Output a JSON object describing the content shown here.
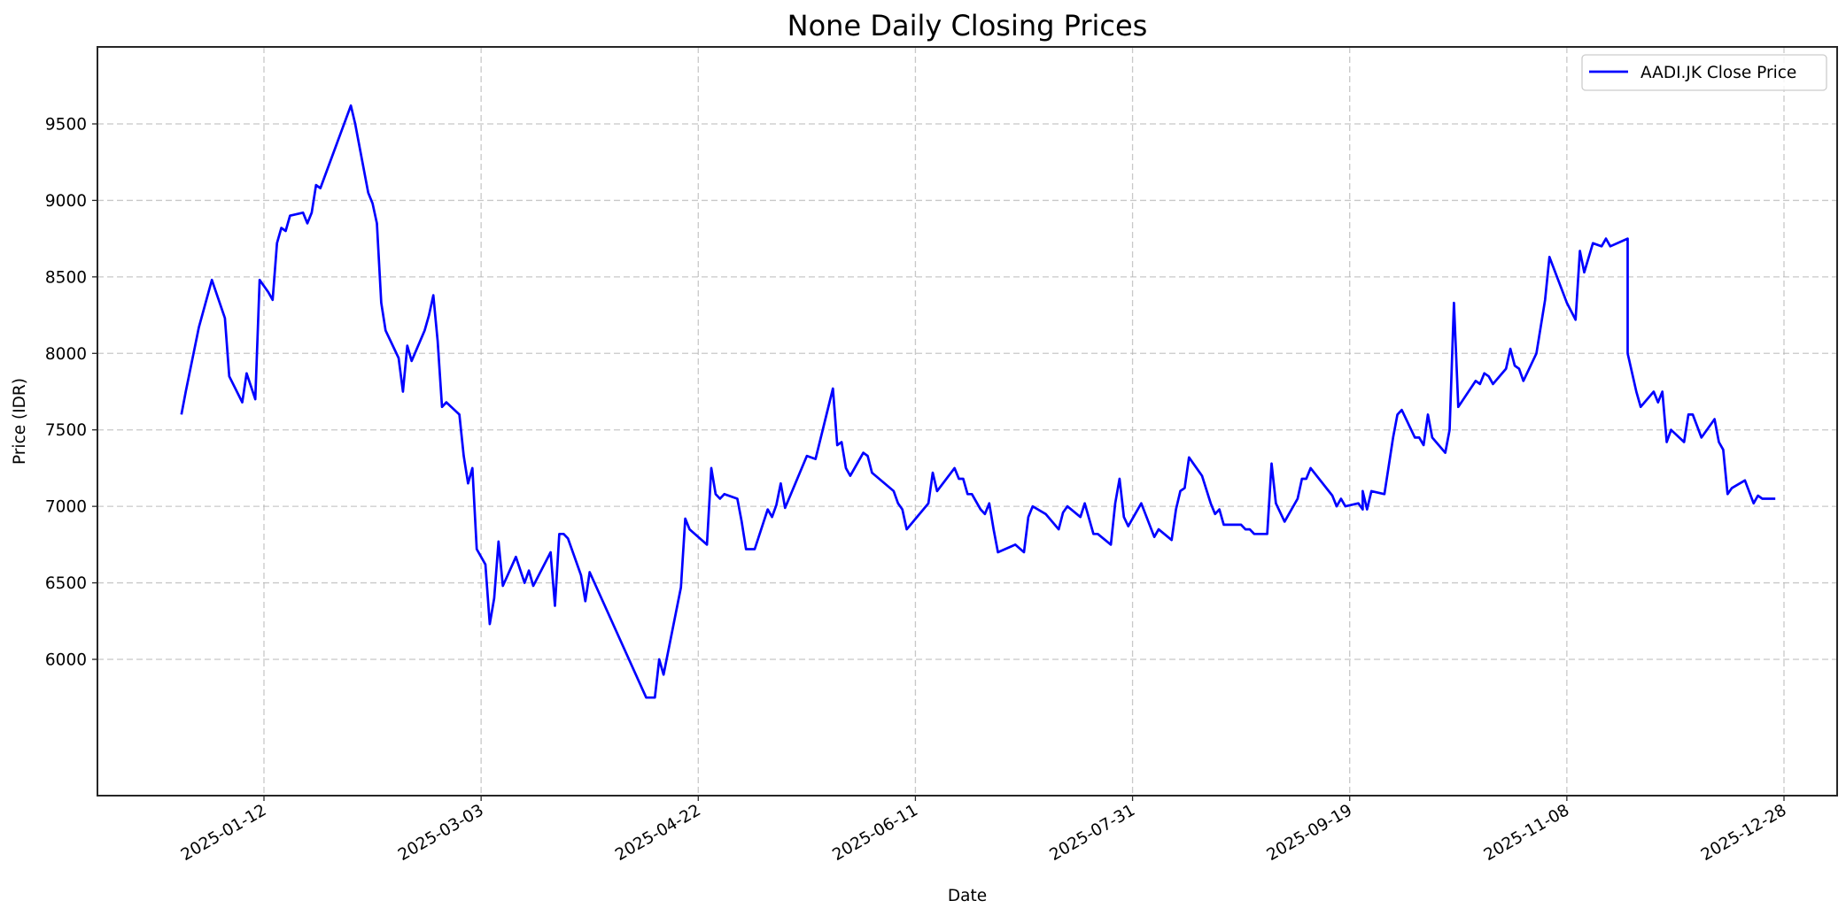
{
  "chart_data": {
    "type": "line",
    "title": "None Daily Closing Prices",
    "xlabel": "Date",
    "ylabel": "Price (IDR)",
    "ylim": [
      5620,
      9810
    ],
    "xlim": [
      "2024-12-15",
      "2026-01-05"
    ],
    "grid": true,
    "legend_position": "upper right",
    "x_ticks": [
      "2025-01-12",
      "2025-03-03",
      "2025-04-22",
      "2025-06-11",
      "2025-07-31",
      "2025-09-19",
      "2025-11-08",
      "2025-12-28"
    ],
    "y_ticks": [
      6000,
      6500,
      7000,
      7500,
      8000,
      8500,
      9000,
      9500
    ],
    "series": [
      {
        "name": "AADI.JK Close Price",
        "color": "#0000ff",
        "points": [
          [
            "2024-12-24",
            7600
          ],
          [
            "2024-12-25",
            7750
          ],
          [
            "2024-12-28",
            8170
          ],
          [
            "2024-12-31",
            8480
          ],
          [
            "2025-01-03",
            8230
          ],
          [
            "2025-01-04",
            7850
          ],
          [
            "2025-01-07",
            7680
          ],
          [
            "2025-01-08",
            7870
          ],
          [
            "2025-01-10",
            7700
          ],
          [
            "2025-01-11",
            8480
          ],
          [
            "2025-01-13",
            8400
          ],
          [
            "2025-01-14",
            8350
          ],
          [
            "2025-01-15",
            8720
          ],
          [
            "2025-01-16",
            8820
          ],
          [
            "2025-01-17",
            8800
          ],
          [
            "2025-01-18",
            8900
          ],
          [
            "2025-01-21",
            8920
          ],
          [
            "2025-01-22",
            8850
          ],
          [
            "2025-01-23",
            8920
          ],
          [
            "2025-01-24",
            9100
          ],
          [
            "2025-01-25",
            9080
          ],
          [
            "2025-02-01",
            9620
          ],
          [
            "2025-02-02",
            9500
          ],
          [
            "2025-02-05",
            9050
          ],
          [
            "2025-02-06",
            8980
          ],
          [
            "2025-02-07",
            8850
          ],
          [
            "2025-02-08",
            8330
          ],
          [
            "2025-02-09",
            8150
          ],
          [
            "2025-02-12",
            7970
          ],
          [
            "2025-02-13",
            7750
          ],
          [
            "2025-02-14",
            8050
          ],
          [
            "2025-02-15",
            7950
          ],
          [
            "2025-02-18",
            8150
          ],
          [
            "2025-02-19",
            8250
          ],
          [
            "2025-02-20",
            8380
          ],
          [
            "2025-02-21",
            8080
          ],
          [
            "2025-02-22",
            7650
          ],
          [
            "2025-02-23",
            7680
          ],
          [
            "2025-02-26",
            7600
          ],
          [
            "2025-02-27",
            7330
          ],
          [
            "2025-02-28",
            7150
          ],
          [
            "2025-03-01",
            7250
          ],
          [
            "2025-03-02",
            6720
          ],
          [
            "2025-03-04",
            6620
          ],
          [
            "2025-03-05",
            6230
          ],
          [
            "2025-03-06",
            6400
          ],
          [
            "2025-03-07",
            6770
          ],
          [
            "2025-03-08",
            6480
          ],
          [
            "2025-03-11",
            6670
          ],
          [
            "2025-03-13",
            6500
          ],
          [
            "2025-03-14",
            6580
          ],
          [
            "2025-03-15",
            6480
          ],
          [
            "2025-03-19",
            6700
          ],
          [
            "2025-03-20",
            6350
          ],
          [
            "2025-03-21",
            6820
          ],
          [
            "2025-03-22",
            6820
          ],
          [
            "2025-03-23",
            6790
          ],
          [
            "2025-03-26",
            6550
          ],
          [
            "2025-03-27",
            6380
          ],
          [
            "2025-03-28",
            6570
          ],
          [
            "2025-04-10",
            5750
          ],
          [
            "2025-04-12",
            5750
          ],
          [
            "2025-04-13",
            6000
          ],
          [
            "2025-04-14",
            5900
          ],
          [
            "2025-04-18",
            6470
          ],
          [
            "2025-04-19",
            6920
          ],
          [
            "2025-04-20",
            6850
          ],
          [
            "2025-04-24",
            6750
          ],
          [
            "2025-04-25",
            7250
          ],
          [
            "2025-04-26",
            7080
          ],
          [
            "2025-04-27",
            7050
          ],
          [
            "2025-04-28",
            7080
          ],
          [
            "2025-05-01",
            7050
          ],
          [
            "2025-05-02",
            6900
          ],
          [
            "2025-05-03",
            6720
          ],
          [
            "2025-05-05",
            6720
          ],
          [
            "2025-05-08",
            6980
          ],
          [
            "2025-05-09",
            6930
          ],
          [
            "2025-05-10",
            7010
          ],
          [
            "2025-05-11",
            7150
          ],
          [
            "2025-05-12",
            6990
          ],
          [
            "2025-05-17",
            7330
          ],
          [
            "2025-05-19",
            7310
          ],
          [
            "2025-05-23",
            7770
          ],
          [
            "2025-05-24",
            7400
          ],
          [
            "2025-05-25",
            7420
          ],
          [
            "2025-05-26",
            7250
          ],
          [
            "2025-05-27",
            7200
          ],
          [
            "2025-05-30",
            7350
          ],
          [
            "2025-05-31",
            7330
          ],
          [
            "2025-06-01",
            7220
          ],
          [
            "2025-06-06",
            7100
          ],
          [
            "2025-06-07",
            7020
          ],
          [
            "2025-06-08",
            6980
          ],
          [
            "2025-06-09",
            6850
          ],
          [
            "2025-06-14",
            7020
          ],
          [
            "2025-06-15",
            7220
          ],
          [
            "2025-06-16",
            7100
          ],
          [
            "2025-06-20",
            7250
          ],
          [
            "2025-06-21",
            7180
          ],
          [
            "2025-06-22",
            7180
          ],
          [
            "2025-06-23",
            7080
          ],
          [
            "2025-06-24",
            7080
          ],
          [
            "2025-06-26",
            6980
          ],
          [
            "2025-06-27",
            6950
          ],
          [
            "2025-06-28",
            7020
          ],
          [
            "2025-06-29",
            6850
          ],
          [
            "2025-06-30",
            6700
          ],
          [
            "2025-07-04",
            6750
          ],
          [
            "2025-07-06",
            6700
          ],
          [
            "2025-07-07",
            6930
          ],
          [
            "2025-07-08",
            7000
          ],
          [
            "2025-07-11",
            6950
          ],
          [
            "2025-07-14",
            6850
          ],
          [
            "2025-07-15",
            6960
          ],
          [
            "2025-07-16",
            7000
          ],
          [
            "2025-07-19",
            6930
          ],
          [
            "2025-07-20",
            7020
          ],
          [
            "2025-07-21",
            6920
          ],
          [
            "2025-07-22",
            6820
          ],
          [
            "2025-07-23",
            6820
          ],
          [
            "2025-07-26",
            6750
          ],
          [
            "2025-07-27",
            7020
          ],
          [
            "2025-07-28",
            7180
          ],
          [
            "2025-07-29",
            6930
          ],
          [
            "2025-07-30",
            6870
          ],
          [
            "2025-08-02",
            7020
          ],
          [
            "2025-08-05",
            6800
          ],
          [
            "2025-08-06",
            6850
          ],
          [
            "2025-08-09",
            6780
          ],
          [
            "2025-08-10",
            6980
          ],
          [
            "2025-08-11",
            7100
          ],
          [
            "2025-08-12",
            7120
          ],
          [
            "2025-08-13",
            7320
          ],
          [
            "2025-08-16",
            7200
          ],
          [
            "2025-08-18",
            7020
          ],
          [
            "2025-08-19",
            6950
          ],
          [
            "2025-08-20",
            6980
          ],
          [
            "2025-08-21",
            6880
          ],
          [
            "2025-08-25",
            6880
          ],
          [
            "2025-08-26",
            6850
          ],
          [
            "2025-08-27",
            6850
          ],
          [
            "2025-08-28",
            6820
          ],
          [
            "2025-08-31",
            6820
          ],
          [
            "2025-09-01",
            7280
          ],
          [
            "2025-09-02",
            7020
          ],
          [
            "2025-09-04",
            6900
          ],
          [
            "2025-09-07",
            7050
          ],
          [
            "2025-09-08",
            7180
          ],
          [
            "2025-09-09",
            7180
          ],
          [
            "2025-09-10",
            7250
          ],
          [
            "2025-09-15",
            7070
          ],
          [
            "2025-09-16",
            7000
          ],
          [
            "2025-09-17",
            7050
          ],
          [
            "2025-09-18",
            7000
          ],
          [
            "2025-09-21",
            7020
          ],
          [
            "2025-09-22",
            6980
          ],
          [
            "2025-09-22",
            7100
          ],
          [
            "2025-09-23",
            6980
          ],
          [
            "2025-09-24",
            7100
          ],
          [
            "2025-09-27",
            7080
          ],
          [
            "2025-09-29",
            7450
          ],
          [
            "2025-09-30",
            7600
          ],
          [
            "2025-10-01",
            7630
          ],
          [
            "2025-10-04",
            7450
          ],
          [
            "2025-10-05",
            7450
          ],
          [
            "2025-10-06",
            7400
          ],
          [
            "2025-10-07",
            7600
          ],
          [
            "2025-10-08",
            7450
          ],
          [
            "2025-10-11",
            7350
          ],
          [
            "2025-10-12",
            7500
          ],
          [
            "2025-10-13",
            8330
          ],
          [
            "2025-10-14",
            7650
          ],
          [
            "2025-10-18",
            7820
          ],
          [
            "2025-10-19",
            7800
          ],
          [
            "2025-10-20",
            7870
          ],
          [
            "2025-10-21",
            7850
          ],
          [
            "2025-10-22",
            7800
          ],
          [
            "2025-10-25",
            7900
          ],
          [
            "2025-10-26",
            8030
          ],
          [
            "2025-10-27",
            7920
          ],
          [
            "2025-10-28",
            7900
          ],
          [
            "2025-10-29",
            7820
          ],
          [
            "2025-11-01",
            8000
          ],
          [
            "2025-11-03",
            8350
          ],
          [
            "2025-11-04",
            8630
          ],
          [
            "2025-11-08",
            8330
          ],
          [
            "2025-11-10",
            8220
          ],
          [
            "2025-11-11",
            8670
          ],
          [
            "2025-11-12",
            8530
          ],
          [
            "2025-11-14",
            8720
          ],
          [
            "2025-11-16",
            8700
          ],
          [
            "2025-11-17",
            8750
          ],
          [
            "2025-11-18",
            8700
          ],
          [
            "2025-11-22",
            8750
          ],
          [
            "2025-11-22",
            8000
          ],
          [
            "2025-11-24",
            7750
          ],
          [
            "2025-11-25",
            7650
          ],
          [
            "2025-11-28",
            7750
          ],
          [
            "2025-11-29",
            7680
          ],
          [
            "2025-11-30",
            7750
          ],
          [
            "2025-12-01",
            7420
          ],
          [
            "2025-12-02",
            7500
          ],
          [
            "2025-12-05",
            7420
          ],
          [
            "2025-12-06",
            7600
          ],
          [
            "2025-12-07",
            7600
          ],
          [
            "2025-12-09",
            7450
          ],
          [
            "2025-12-12",
            7570
          ],
          [
            "2025-12-13",
            7420
          ],
          [
            "2025-12-14",
            7370
          ],
          [
            "2025-12-15",
            7080
          ],
          [
            "2025-12-16",
            7120
          ],
          [
            "2025-12-19",
            7170
          ],
          [
            "2025-12-21",
            7020
          ],
          [
            "2025-12-22",
            7070
          ],
          [
            "2025-12-23",
            7050
          ],
          [
            "2025-12-26",
            7050
          ]
        ]
      }
    ]
  }
}
